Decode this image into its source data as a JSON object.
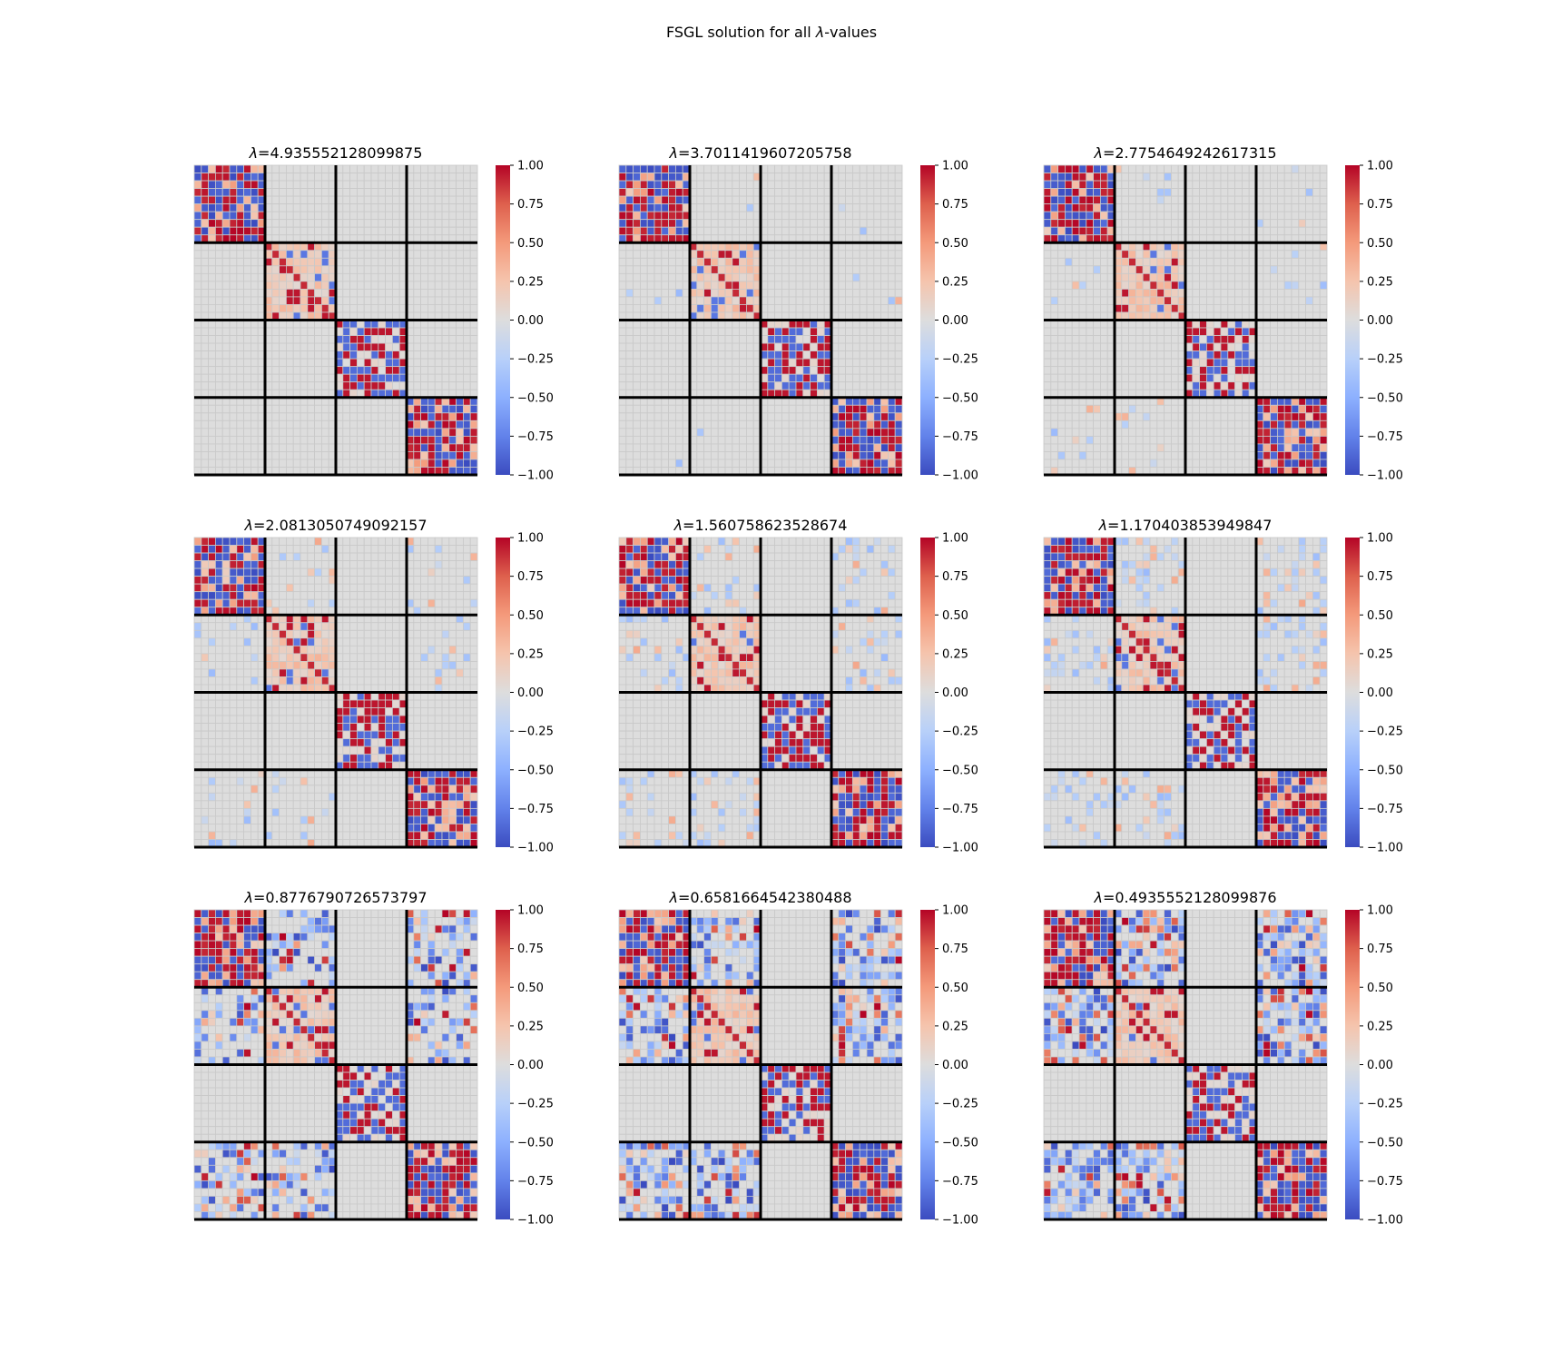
{
  "figure": {
    "title_prefix": "FSGL solution for all ",
    "title_symbol": "λ",
    "title_suffix": "-values"
  },
  "chart_data": {
    "type": "heatmap",
    "title": "FSGL solution for all λ-values",
    "colormap": "coolwarm",
    "vmin": -1.0,
    "vmax": 1.0,
    "colorbar_ticks": [
      "1.00",
      "0.75",
      "0.50",
      "0.25",
      "0.00",
      "−0.25",
      "−0.50",
      "−0.75",
      "−1.00"
    ],
    "matrix_size": 40,
    "block_boundaries": [
      10,
      20,
      30
    ],
    "panels": [
      {
        "symbol": "λ",
        "value": "4.935552128099875"
      },
      {
        "symbol": "λ",
        "value": "3.7011419607205758"
      },
      {
        "symbol": "λ",
        "value": "2.7754649242617315"
      },
      {
        "symbol": "λ",
        "value": "2.0813050749092157"
      },
      {
        "symbol": "λ",
        "value": "1.560758623528674"
      },
      {
        "symbol": "λ",
        "value": "1.170403853949847"
      },
      {
        "symbol": "λ",
        "value": "0.8776790726573797"
      },
      {
        "symbol": "λ",
        "value": "0.6581664542380488"
      },
      {
        "symbol": "λ",
        "value": "0.4935552128099876"
      }
    ]
  }
}
